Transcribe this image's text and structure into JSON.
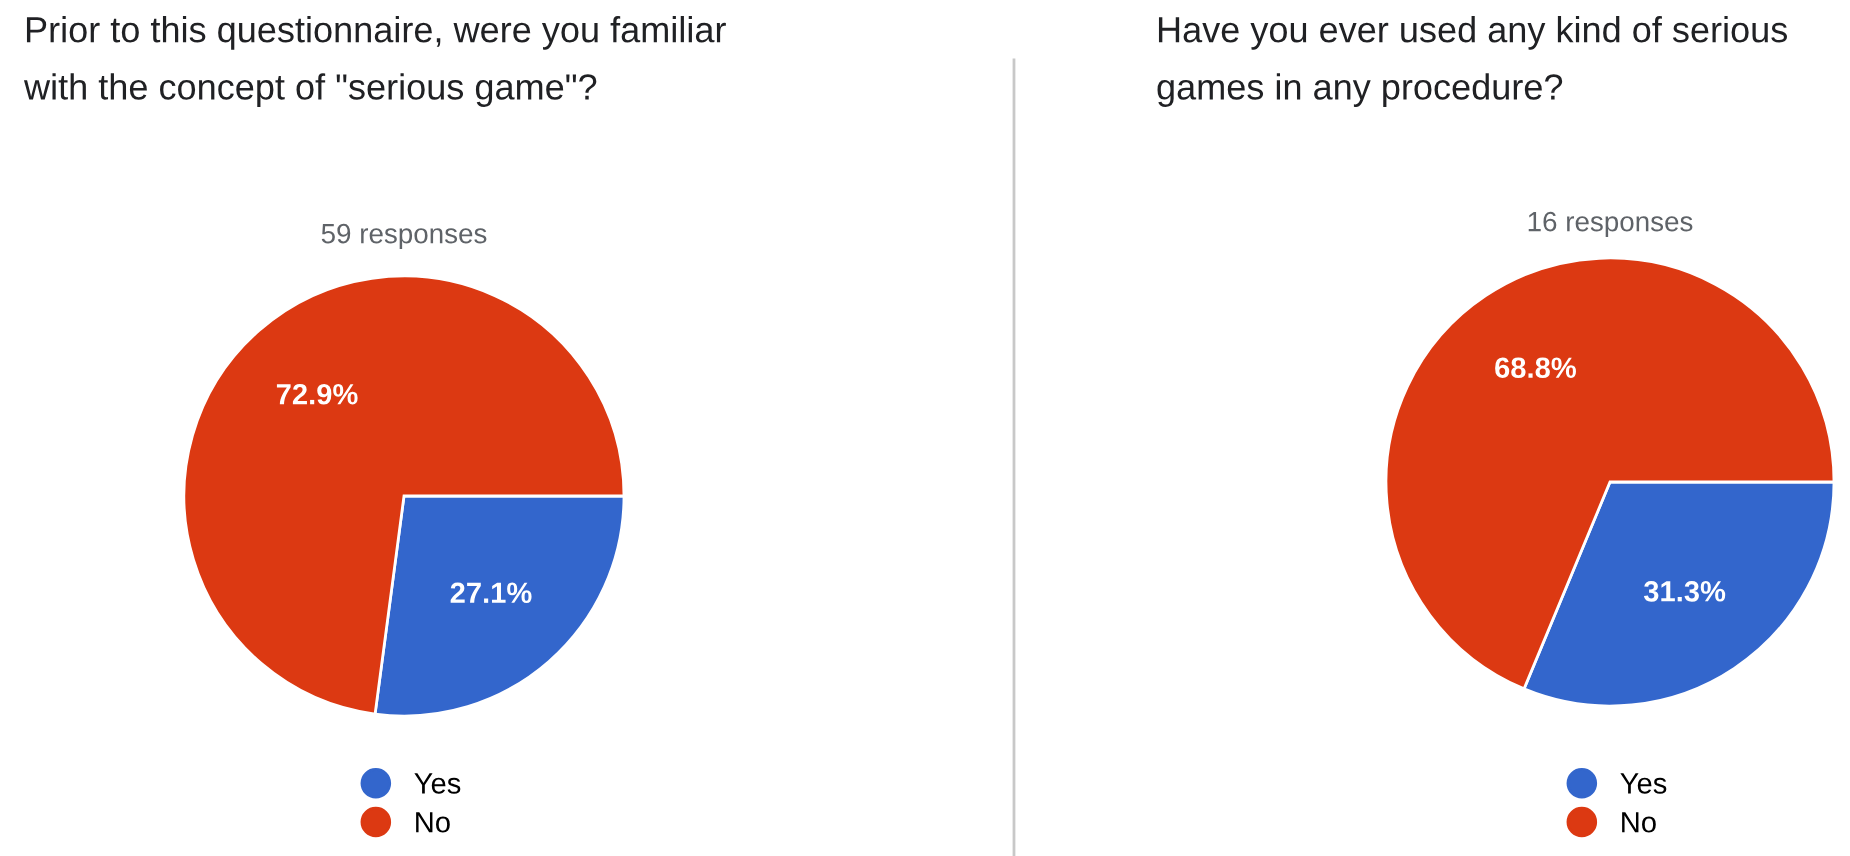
{
  "chart_data": [
    {
      "type": "pie",
      "title": "Prior to this questionnaire, were you familiar\nwith the concept of \"serious game\"?",
      "subtitle": "59 responses",
      "categories": [
        "Yes",
        "No"
      ],
      "values": [
        27.1,
        72.9
      ],
      "colors": [
        "#3366cc",
        "#dc3912"
      ],
      "value_labels": [
        "27.1%",
        "72.9%"
      ],
      "legend": "bottom"
    },
    {
      "type": "pie",
      "title": "Have you ever used any kind of serious\ngames in any procedure?",
      "subtitle": "16 responses",
      "categories": [
        "Yes",
        "No"
      ],
      "values": [
        31.3,
        68.8
      ],
      "colors": [
        "#3366cc",
        "#dc3912"
      ],
      "value_labels": [
        "31.3%",
        "68.8%"
      ],
      "legend": "bottom"
    }
  ]
}
